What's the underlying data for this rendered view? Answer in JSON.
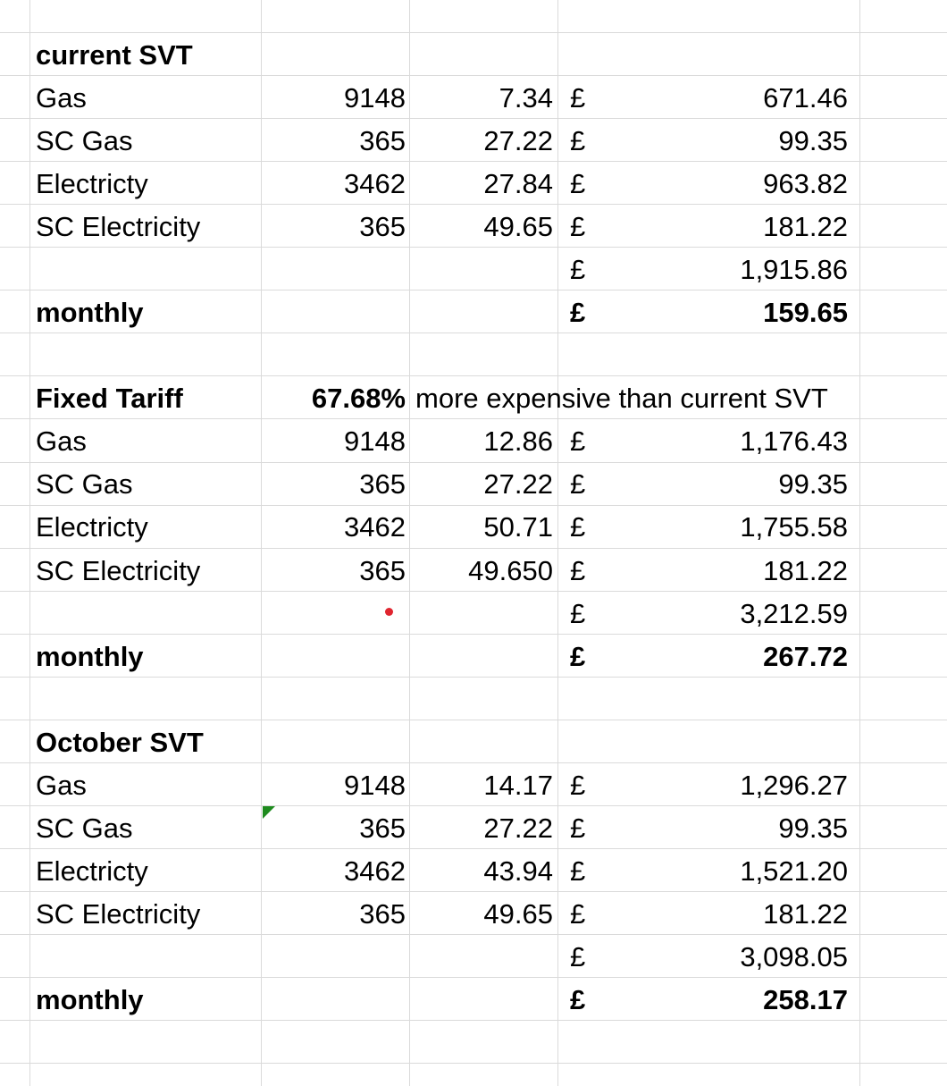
{
  "sections": [
    {
      "title": "current SVT",
      "rows": [
        {
          "label": "Gas",
          "qty": "9148",
          "rate": "7.34",
          "currency": "£",
          "amount": "671.46"
        },
        {
          "label": "SC Gas",
          "qty": "365",
          "rate": "27.22",
          "currency": "£",
          "amount": "99.35"
        },
        {
          "label": "Electricty",
          "qty": "3462",
          "rate": "27.84",
          "currency": "£",
          "amount": "963.82"
        },
        {
          "label": "SC Electricity",
          "qty": "365",
          "rate": "49.65",
          "currency": "£",
          "amount": "181.22"
        }
      ],
      "total": {
        "currency": "£",
        "amount": "1,915.86"
      },
      "monthly": {
        "label": "monthly",
        "currency": "£",
        "amount": "159.65"
      }
    },
    {
      "title": "Fixed Tariff",
      "percent": "67.68%",
      "note": "more expensive than current SVT",
      "rows": [
        {
          "label": "Gas",
          "qty": "9148",
          "rate": "12.86",
          "currency": "£",
          "amount": "1,176.43"
        },
        {
          "label": "SC Gas",
          "qty": "365",
          "rate": "27.22",
          "currency": "£",
          "amount": "99.35"
        },
        {
          "label": "Electricty",
          "qty": "3462",
          "rate": "50.71",
          "currency": "£",
          "amount": "1,755.58"
        },
        {
          "label": "SC Electricity",
          "qty": "365",
          "rate": "49.650",
          "currency": "£",
          "amount": "181.22"
        }
      ],
      "total": {
        "currency": "£",
        "amount": "3,212.59"
      },
      "monthly": {
        "label": "monthly",
        "currency": "£",
        "amount": "267.72"
      }
    },
    {
      "title": "October SVT",
      "rows": [
        {
          "label": "Gas",
          "qty": "9148",
          "rate": "14.17",
          "currency": "£",
          "amount": "1,296.27"
        },
        {
          "label": "SC Gas",
          "qty": "365",
          "rate": "27.22",
          "currency": "£",
          "amount": "99.35"
        },
        {
          "label": "Electricty",
          "qty": "3462",
          "rate": "43.94",
          "currency": "£",
          "amount": "1,521.20"
        },
        {
          "label": "SC Electricity",
          "qty": "365",
          "rate": "49.65",
          "currency": "£",
          "amount": "181.22"
        }
      ],
      "total": {
        "currency": "£",
        "amount": "3,098.05"
      },
      "monthly": {
        "label": "monthly",
        "currency": "£",
        "amount": "258.17"
      }
    }
  ],
  "colors": {
    "gridline": "#dadada",
    "error_dot": "#e0252f",
    "comment_marker": "#1e8b1e"
  }
}
